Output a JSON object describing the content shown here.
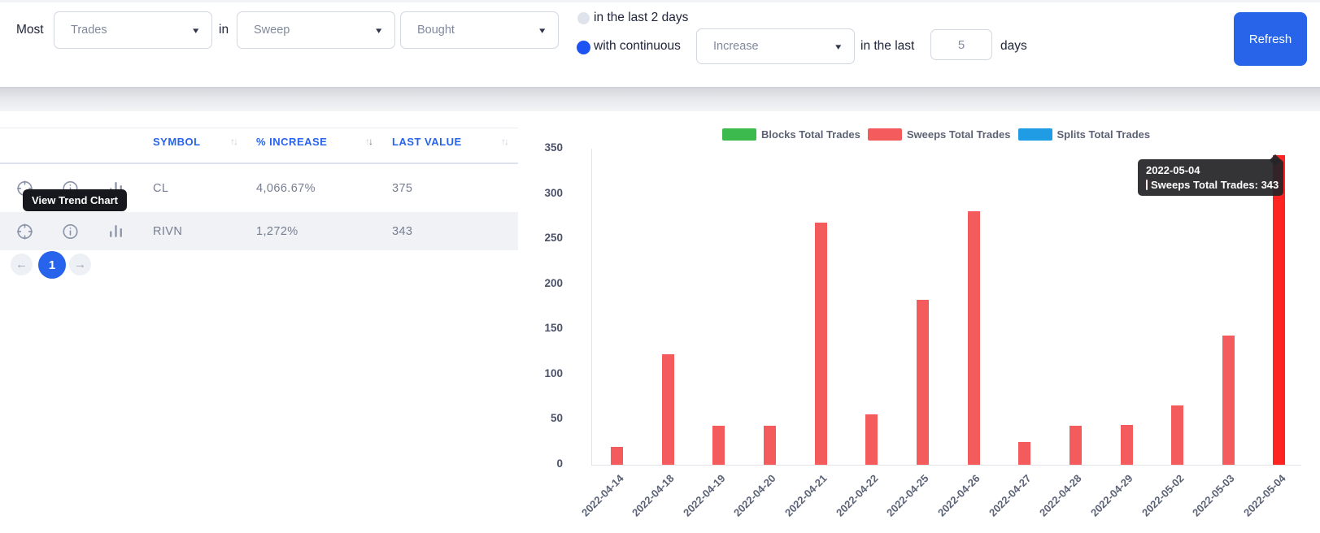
{
  "toolbar": {
    "most_label": "Most",
    "in_label": "in",
    "metric_dropdown": "Trades",
    "type_dropdown": "Sweep",
    "side_dropdown": "Bought",
    "option_last_2_days": "in the last 2 days",
    "option_continuous": "with continuous",
    "trend_dropdown": "Increase",
    "in_the_last_label": "in the last",
    "days_input": "5",
    "days_label": "days",
    "refresh_button": "Refresh"
  },
  "icons": {
    "prev_arrow": "←",
    "next_arrow": "→",
    "sort_up": "↑",
    "sort_down": "↓",
    "dropdown_caret": "▾"
  },
  "table": {
    "columns": [
      "SYMBOL",
      "% INCREASE",
      "LAST VALUE"
    ],
    "sorted_column_index": 1,
    "rows": [
      {
        "symbol": "CL",
        "increase": "4,066.67%",
        "last_value": "375"
      },
      {
        "symbol": "RIVN",
        "increase": "1,272%",
        "last_value": "343"
      }
    ],
    "highlighted_row_index": 1,
    "row_tooltip": "View Trend Chart",
    "pagination": {
      "current_page": "1"
    }
  },
  "chart_data": {
    "type": "bar",
    "title": "",
    "xlabel": "",
    "ylabel": "",
    "categories": [
      "2022-04-14",
      "2022-04-18",
      "2022-04-19",
      "2022-04-20",
      "2022-04-21",
      "2022-04-22",
      "2022-04-25",
      "2022-04-26",
      "2022-04-27",
      "2022-04-28",
      "2022-04-29",
      "2022-05-02",
      "2022-05-03",
      "2022-05-04"
    ],
    "series": [
      {
        "name": "Blocks Total Trades",
        "color": "#3dba4e",
        "values": [
          0,
          0,
          0,
          0,
          0,
          0,
          0,
          0,
          0,
          0,
          0,
          0,
          0,
          0
        ]
      },
      {
        "name": "Sweeps Total Trades",
        "color": "#f45b5c",
        "values": [
          20,
          122,
          43,
          43,
          268,
          56,
          183,
          281,
          25,
          43,
          44,
          66,
          143,
          343
        ]
      },
      {
        "name": "Splits Total Trades",
        "color": "#1f9ce4",
        "values": [
          0,
          0,
          0,
          0,
          0,
          0,
          0,
          0,
          0,
          0,
          0,
          0,
          0,
          0
        ]
      }
    ],
    "ylim": [
      0,
      350
    ],
    "yticks": [
      0,
      50,
      100,
      150,
      200,
      250,
      300,
      350
    ],
    "legend_position": "top",
    "grid": false,
    "highlight": {
      "category": "2022-05-04",
      "color": "#ff2421"
    },
    "tooltip": {
      "title": "2022-05-04",
      "series": "Sweeps Total Trades",
      "value": 343,
      "swatch_color": "#f63538"
    }
  }
}
